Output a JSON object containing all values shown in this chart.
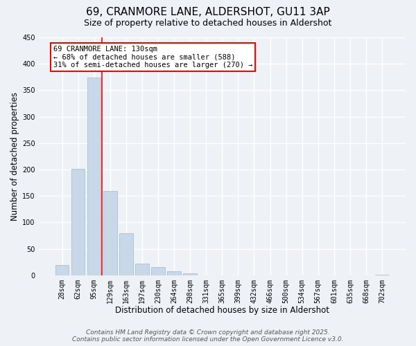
{
  "title": "69, CRANMORE LANE, ALDERSHOT, GU11 3AP",
  "subtitle": "Size of property relative to detached houses in Aldershot",
  "xlabel": "Distribution of detached houses by size in Aldershot",
  "ylabel": "Number of detached properties",
  "bar_color": "#c8d8e8",
  "bar_edge_color": "#a8c0d0",
  "categories": [
    "28sqm",
    "62sqm",
    "95sqm",
    "129sqm",
    "163sqm",
    "197sqm",
    "230sqm",
    "264sqm",
    "298sqm",
    "331sqm",
    "365sqm",
    "399sqm",
    "432sqm",
    "466sqm",
    "500sqm",
    "534sqm",
    "567sqm",
    "601sqm",
    "635sqm",
    "668sqm",
    "702sqm"
  ],
  "values": [
    19,
    201,
    374,
    160,
    80,
    22,
    15,
    8,
    3,
    0,
    0,
    0,
    0,
    0,
    0,
    0,
    0,
    0,
    0,
    0,
    1
  ],
  "ylim": [
    0,
    450
  ],
  "yticks": [
    0,
    50,
    100,
    150,
    200,
    250,
    300,
    350,
    400,
    450
  ],
  "annotation_box_text": "69 CRANMORE LANE: 130sqm\n← 68% of detached houses are smaller (588)\n31% of semi-detached houses are larger (270) →",
  "annotation_box_color": "white",
  "annotation_box_edge_color": "red",
  "red_line_category_index": 3,
  "background_color": "#eef2f7",
  "grid_color": "white",
  "footer_line1": "Contains HM Land Registry data © Crown copyright and database right 2025.",
  "footer_line2": "Contains public sector information licensed under the Open Government Licence v3.0.",
  "title_fontsize": 11,
  "subtitle_fontsize": 9,
  "xlabel_fontsize": 8.5,
  "ylabel_fontsize": 8.5,
  "tick_fontsize": 7,
  "annotation_fontsize": 7.5,
  "footer_fontsize": 6.5
}
